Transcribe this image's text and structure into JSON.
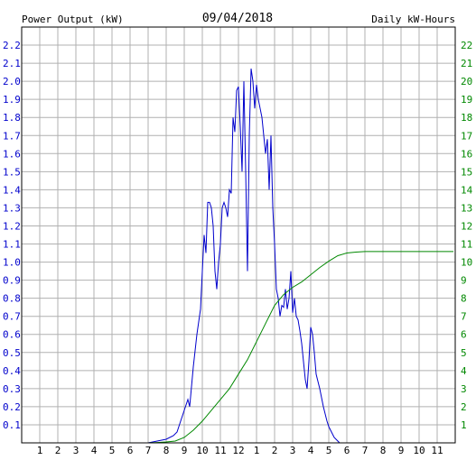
{
  "header": {
    "left_title": "Power Output (kW)",
    "date": "09/04/2018",
    "right_title": "Daily kW-Hours"
  },
  "colors": {
    "power": "#0000cc",
    "energy": "#008800",
    "grid": "#b0b0b0",
    "axis": "#000000"
  },
  "chart_data": {
    "type": "line",
    "title": "09/04/2018",
    "grid": true,
    "x_ticks": [
      "1",
      "2",
      "3",
      "4",
      "5",
      "6",
      "7",
      "8",
      "9",
      "10",
      "11",
      "12",
      "1",
      "2",
      "3",
      "4",
      "5",
      "6",
      "7",
      "8",
      "9",
      "10",
      "11"
    ],
    "xlim": [
      0,
      24
    ],
    "y_left": {
      "label": "Power Output (kW)",
      "lim": [
        0,
        2.3
      ],
      "ticks": [
        "0.1",
        "0.2",
        "0.3",
        "0.4",
        "0.5",
        "0.6",
        "0.7",
        "0.8",
        "0.9",
        "1.0",
        "1.1",
        "1.2",
        "1.3",
        "1.4",
        "1.5",
        "1.6",
        "1.7",
        "1.8",
        "1.9",
        "2.0",
        "2.1",
        "2.2"
      ]
    },
    "y_right": {
      "label": "Daily kW-Hours",
      "lim": [
        0,
        23
      ],
      "ticks": [
        "1",
        "2",
        "3",
        "4",
        "5",
        "6",
        "7",
        "8",
        "9",
        "10",
        "11",
        "12",
        "13",
        "14",
        "15",
        "16",
        "17",
        "18",
        "19",
        "20",
        "21",
        "22"
      ]
    },
    "series": [
      {
        "name": "Power Output (kW)",
        "axis": "left",
        "x": [
          7.0,
          7.5,
          8.0,
          8.4,
          8.6,
          8.8,
          9.0,
          9.2,
          9.3,
          9.5,
          9.7,
          9.9,
          10.0,
          10.1,
          10.2,
          10.3,
          10.4,
          10.5,
          10.6,
          10.7,
          10.8,
          10.9,
          11.0,
          11.1,
          11.2,
          11.3,
          11.4,
          11.5,
          11.6,
          11.7,
          11.8,
          11.9,
          12.0,
          12.1,
          12.2,
          12.3,
          12.4,
          12.5,
          12.6,
          12.7,
          12.8,
          12.9,
          13.0,
          13.1,
          13.2,
          13.3,
          13.4,
          13.5,
          13.6,
          13.7,
          13.8,
          13.9,
          14.0,
          14.1,
          14.2,
          14.3,
          14.4,
          14.5,
          14.6,
          14.7,
          14.8,
          14.9,
          15.0,
          15.1,
          15.2,
          15.3,
          15.4,
          15.5,
          15.6,
          15.7,
          15.8,
          15.9,
          16.0,
          16.1,
          16.2,
          16.3,
          16.4,
          16.5,
          16.6,
          16.7,
          16.8,
          16.9,
          17.0,
          17.1,
          17.2,
          17.3,
          17.4,
          17.5,
          17.6,
          17.8,
          18.0,
          18.2,
          18.4,
          18.6,
          18.8,
          19.0
        ],
        "y": [
          0.0,
          0.01,
          0.02,
          0.04,
          0.06,
          0.12,
          0.18,
          0.24,
          0.2,
          0.42,
          0.6,
          0.74,
          0.95,
          1.15,
          1.05,
          1.33,
          1.33,
          1.3,
          1.2,
          0.95,
          0.85,
          1.0,
          1.1,
          1.3,
          1.33,
          1.3,
          1.25,
          1.4,
          1.38,
          1.8,
          1.72,
          1.95,
          1.97,
          1.75,
          1.5,
          2.0,
          1.5,
          0.95,
          1.7,
          2.07,
          2.0,
          1.85,
          1.98,
          1.9,
          1.85,
          1.8,
          1.7,
          1.6,
          1.68,
          1.4,
          1.7,
          1.3,
          1.1,
          0.85,
          0.8,
          0.7,
          0.76,
          0.75,
          0.85,
          0.74,
          0.8,
          0.95,
          0.72,
          0.8,
          0.7,
          0.68,
          0.62,
          0.55,
          0.45,
          0.35,
          0.3,
          0.45,
          0.64,
          0.6,
          0.5,
          0.38,
          0.34,
          0.3,
          0.25,
          0.2,
          0.16,
          0.12,
          0.09,
          0.07,
          0.05,
          0.03,
          0.02,
          0.01,
          0.0,
          0.0,
          0.0,
          0.0,
          0.0,
          0.0,
          0.0,
          0.0
        ]
      },
      {
        "name": "Daily kW-Hours",
        "axis": "right",
        "x": [
          7.0,
          7.5,
          8.0,
          8.5,
          9.0,
          9.5,
          10.0,
          10.5,
          11.0,
          11.5,
          12.0,
          12.5,
          13.0,
          13.5,
          14.0,
          14.5,
          15.0,
          15.5,
          16.0,
          16.5,
          17.0,
          17.5,
          18.0,
          18.5,
          19.0,
          19.5,
          20.0,
          21.0,
          22.0,
          23.0,
          23.9
        ],
        "y": [
          0.0,
          0.02,
          0.05,
          0.1,
          0.3,
          0.7,
          1.2,
          1.8,
          2.4,
          3.0,
          3.8,
          4.6,
          5.6,
          6.6,
          7.6,
          8.2,
          8.6,
          8.9,
          9.3,
          9.7,
          10.05,
          10.35,
          10.5,
          10.55,
          10.58,
          10.58,
          10.58,
          10.58,
          10.58,
          10.58,
          10.58
        ]
      }
    ]
  }
}
